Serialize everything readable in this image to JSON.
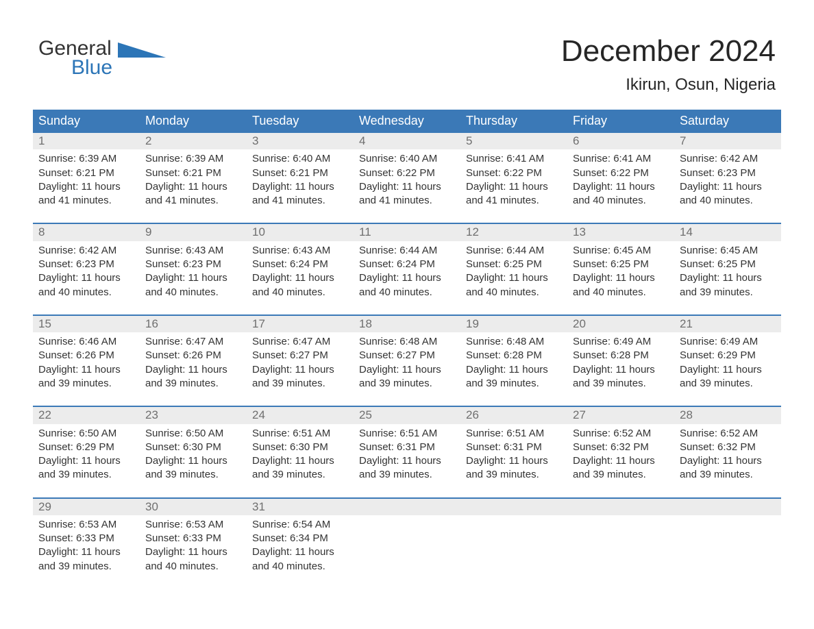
{
  "logo": {
    "word1": "General",
    "word2": "Blue",
    "text_color": "#333333",
    "blue_color": "#2c75b7"
  },
  "title": {
    "month": "December 2024",
    "location": "Ikirun, Osun, Nigeria"
  },
  "colors": {
    "header_bg": "#3b79b7",
    "week_rule": "#3b79b7",
    "daynum_bg": "#ececec",
    "daynum_text": "#6f6f6f",
    "body_text": "#333333",
    "page_bg": "#ffffff"
  },
  "dow": [
    "Sunday",
    "Monday",
    "Tuesday",
    "Wednesday",
    "Thursday",
    "Friday",
    "Saturday"
  ],
  "weeks": [
    [
      {
        "n": "1",
        "sunrise": "Sunrise: 6:39 AM",
        "sunset": "Sunset: 6:21 PM",
        "d1": "Daylight: 11 hours",
        "d2": "and 41 minutes."
      },
      {
        "n": "2",
        "sunrise": "Sunrise: 6:39 AM",
        "sunset": "Sunset: 6:21 PM",
        "d1": "Daylight: 11 hours",
        "d2": "and 41 minutes."
      },
      {
        "n": "3",
        "sunrise": "Sunrise: 6:40 AM",
        "sunset": "Sunset: 6:21 PM",
        "d1": "Daylight: 11 hours",
        "d2": "and 41 minutes."
      },
      {
        "n": "4",
        "sunrise": "Sunrise: 6:40 AM",
        "sunset": "Sunset: 6:22 PM",
        "d1": "Daylight: 11 hours",
        "d2": "and 41 minutes."
      },
      {
        "n": "5",
        "sunrise": "Sunrise: 6:41 AM",
        "sunset": "Sunset: 6:22 PM",
        "d1": "Daylight: 11 hours",
        "d2": "and 41 minutes."
      },
      {
        "n": "6",
        "sunrise": "Sunrise: 6:41 AM",
        "sunset": "Sunset: 6:22 PM",
        "d1": "Daylight: 11 hours",
        "d2": "and 40 minutes."
      },
      {
        "n": "7",
        "sunrise": "Sunrise: 6:42 AM",
        "sunset": "Sunset: 6:23 PM",
        "d1": "Daylight: 11 hours",
        "d2": "and 40 minutes."
      }
    ],
    [
      {
        "n": "8",
        "sunrise": "Sunrise: 6:42 AM",
        "sunset": "Sunset: 6:23 PM",
        "d1": "Daylight: 11 hours",
        "d2": "and 40 minutes."
      },
      {
        "n": "9",
        "sunrise": "Sunrise: 6:43 AM",
        "sunset": "Sunset: 6:23 PM",
        "d1": "Daylight: 11 hours",
        "d2": "and 40 minutes."
      },
      {
        "n": "10",
        "sunrise": "Sunrise: 6:43 AM",
        "sunset": "Sunset: 6:24 PM",
        "d1": "Daylight: 11 hours",
        "d2": "and 40 minutes."
      },
      {
        "n": "11",
        "sunrise": "Sunrise: 6:44 AM",
        "sunset": "Sunset: 6:24 PM",
        "d1": "Daylight: 11 hours",
        "d2": "and 40 minutes."
      },
      {
        "n": "12",
        "sunrise": "Sunrise: 6:44 AM",
        "sunset": "Sunset: 6:25 PM",
        "d1": "Daylight: 11 hours",
        "d2": "and 40 minutes."
      },
      {
        "n": "13",
        "sunrise": "Sunrise: 6:45 AM",
        "sunset": "Sunset: 6:25 PM",
        "d1": "Daylight: 11 hours",
        "d2": "and 40 minutes."
      },
      {
        "n": "14",
        "sunrise": "Sunrise: 6:45 AM",
        "sunset": "Sunset: 6:25 PM",
        "d1": "Daylight: 11 hours",
        "d2": "and 39 minutes."
      }
    ],
    [
      {
        "n": "15",
        "sunrise": "Sunrise: 6:46 AM",
        "sunset": "Sunset: 6:26 PM",
        "d1": "Daylight: 11 hours",
        "d2": "and 39 minutes."
      },
      {
        "n": "16",
        "sunrise": "Sunrise: 6:47 AM",
        "sunset": "Sunset: 6:26 PM",
        "d1": "Daylight: 11 hours",
        "d2": "and 39 minutes."
      },
      {
        "n": "17",
        "sunrise": "Sunrise: 6:47 AM",
        "sunset": "Sunset: 6:27 PM",
        "d1": "Daylight: 11 hours",
        "d2": "and 39 minutes."
      },
      {
        "n": "18",
        "sunrise": "Sunrise: 6:48 AM",
        "sunset": "Sunset: 6:27 PM",
        "d1": "Daylight: 11 hours",
        "d2": "and 39 minutes."
      },
      {
        "n": "19",
        "sunrise": "Sunrise: 6:48 AM",
        "sunset": "Sunset: 6:28 PM",
        "d1": "Daylight: 11 hours",
        "d2": "and 39 minutes."
      },
      {
        "n": "20",
        "sunrise": "Sunrise: 6:49 AM",
        "sunset": "Sunset: 6:28 PM",
        "d1": "Daylight: 11 hours",
        "d2": "and 39 minutes."
      },
      {
        "n": "21",
        "sunrise": "Sunrise: 6:49 AM",
        "sunset": "Sunset: 6:29 PM",
        "d1": "Daylight: 11 hours",
        "d2": "and 39 minutes."
      }
    ],
    [
      {
        "n": "22",
        "sunrise": "Sunrise: 6:50 AM",
        "sunset": "Sunset: 6:29 PM",
        "d1": "Daylight: 11 hours",
        "d2": "and 39 minutes."
      },
      {
        "n": "23",
        "sunrise": "Sunrise: 6:50 AM",
        "sunset": "Sunset: 6:30 PM",
        "d1": "Daylight: 11 hours",
        "d2": "and 39 minutes."
      },
      {
        "n": "24",
        "sunrise": "Sunrise: 6:51 AM",
        "sunset": "Sunset: 6:30 PM",
        "d1": "Daylight: 11 hours",
        "d2": "and 39 minutes."
      },
      {
        "n": "25",
        "sunrise": "Sunrise: 6:51 AM",
        "sunset": "Sunset: 6:31 PM",
        "d1": "Daylight: 11 hours",
        "d2": "and 39 minutes."
      },
      {
        "n": "26",
        "sunrise": "Sunrise: 6:51 AM",
        "sunset": "Sunset: 6:31 PM",
        "d1": "Daylight: 11 hours",
        "d2": "and 39 minutes."
      },
      {
        "n": "27",
        "sunrise": "Sunrise: 6:52 AM",
        "sunset": "Sunset: 6:32 PM",
        "d1": "Daylight: 11 hours",
        "d2": "and 39 minutes."
      },
      {
        "n": "28",
        "sunrise": "Sunrise: 6:52 AM",
        "sunset": "Sunset: 6:32 PM",
        "d1": "Daylight: 11 hours",
        "d2": "and 39 minutes."
      }
    ],
    [
      {
        "n": "29",
        "sunrise": "Sunrise: 6:53 AM",
        "sunset": "Sunset: 6:33 PM",
        "d1": "Daylight: 11 hours",
        "d2": "and 39 minutes."
      },
      {
        "n": "30",
        "sunrise": "Sunrise: 6:53 AM",
        "sunset": "Sunset: 6:33 PM",
        "d1": "Daylight: 11 hours",
        "d2": "and 40 minutes."
      },
      {
        "n": "31",
        "sunrise": "Sunrise: 6:54 AM",
        "sunset": "Sunset: 6:34 PM",
        "d1": "Daylight: 11 hours",
        "d2": "and 40 minutes."
      },
      {
        "empty": true
      },
      {
        "empty": true
      },
      {
        "empty": true
      },
      {
        "empty": true
      }
    ]
  ]
}
